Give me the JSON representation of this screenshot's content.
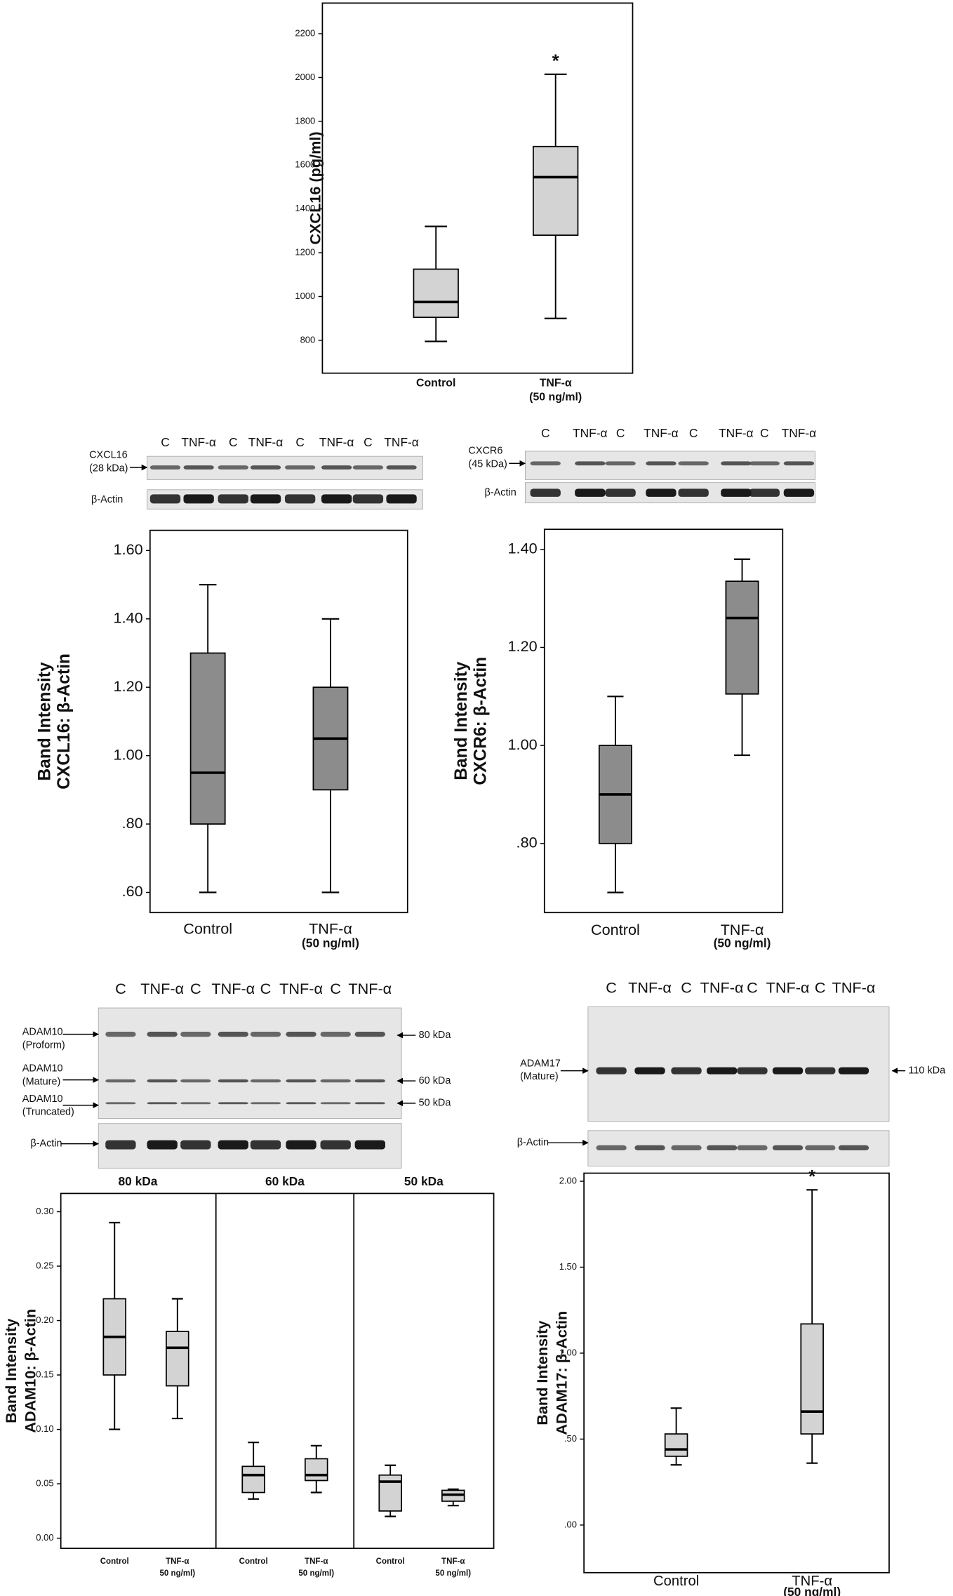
{
  "chart_data": [
    {
      "type": "box",
      "ylabel": [
        "CXCL16 (pg/ml)"
      ],
      "color": "#d3d3d3",
      "categories": [
        "Control",
        "TNF-α"
      ],
      "category_sublabels": [
        null,
        "(50 ng/ml)"
      ],
      "annotations": [
        null,
        "*"
      ],
      "ylim": [
        650,
        2340
      ],
      "yticks": [
        800,
        1000,
        1200,
        1400,
        1600,
        1800,
        2000,
        2200
      ],
      "boxes": [
        {
          "min": 795,
          "q1": 905,
          "median": 975,
          "q3": 1125,
          "max": 1320
        },
        {
          "min": 900,
          "q1": 1280,
          "median": 1545,
          "q3": 1685,
          "max": 2015
        }
      ]
    },
    {
      "type": "box",
      "ylabel": [
        "Band Intensity",
        "CXCL16: β-Actin"
      ],
      "color": "#8c8c8c",
      "categories": [
        "Control",
        "TNF-α"
      ],
      "category_sublabels": [
        null,
        "(50 ng/ml)"
      ],
      "ylim": [
        0.541,
        1.659
      ],
      "yticks": [
        {
          "value": 0.6,
          "label": ".60"
        },
        {
          "value": 0.8,
          "label": ".80"
        },
        {
          "value": 1.0,
          "label": "1.00"
        },
        {
          "value": 1.2,
          "label": "1.20"
        },
        {
          "value": 1.4,
          "label": "1.40"
        },
        {
          "value": 1.6,
          "label": "1.60"
        }
      ],
      "boxes": [
        {
          "min": 0.6,
          "q1": 0.8,
          "median": 0.95,
          "q3": 1.3,
          "max": 1.5
        },
        {
          "min": 0.6,
          "q1": 0.9,
          "median": 1.05,
          "q3": 1.2,
          "max": 1.4
        }
      ]
    },
    {
      "type": "box",
      "ylabel": [
        "Band Intensity",
        "CXCR6: β-Actin"
      ],
      "color": "#8c8c8c",
      "categories": [
        "Control",
        "TNF-α"
      ],
      "category_sublabels": [
        null,
        "(50 ng/ml)"
      ],
      "ylim": [
        0.659,
        1.441
      ],
      "yticks": [
        {
          "value": 0.8,
          "label": ".80"
        },
        {
          "value": 1.0,
          "label": "1.00"
        },
        {
          "value": 1.2,
          "label": "1.20"
        },
        {
          "value": 1.4,
          "label": "1.40"
        }
      ],
      "boxes": [
        {
          "min": 0.7,
          "q1": 0.8,
          "median": 0.9,
          "q3": 1.0,
          "max": 1.1
        },
        {
          "min": 0.98,
          "q1": 1.105,
          "median": 1.26,
          "q3": 1.335,
          "max": 1.38
        }
      ]
    },
    {
      "type": "panel-box",
      "ylabel": [
        "Band Intensity",
        "ADAM10: β-Actin"
      ],
      "color": "#d3d3d3",
      "categories": [
        "Control",
        "TNF-α"
      ],
      "category_sublabels": [
        null,
        "50 ng/ml)"
      ],
      "ylim": [
        -0.0093,
        0.3168
      ],
      "yticks": [
        {
          "value": 0,
          "label": "0.00"
        },
        {
          "value": 0.05,
          "label": "0.05"
        },
        {
          "value": 0.1,
          "label": "0.10"
        },
        {
          "value": 0.15,
          "label": "0.15"
        },
        {
          "value": 0.2,
          "label": "0.20"
        },
        {
          "value": 0.25,
          "label": "0.25"
        },
        {
          "value": 0.3,
          "label": "0.30"
        }
      ],
      "panels": [
        {
          "title": "80 kDa",
          "boxes": [
            {
              "min": 0.1,
              "q1": 0.15,
              "median": 0.185,
              "q3": 0.22,
              "max": 0.29
            },
            {
              "min": 0.11,
              "q1": 0.14,
              "median": 0.175,
              "q3": 0.19,
              "max": 0.22
            }
          ]
        },
        {
          "title": "60 kDa",
          "boxes": [
            {
              "min": 0.036,
              "q1": 0.042,
              "median": 0.058,
              "q3": 0.066,
              "max": 0.088
            },
            {
              "min": 0.042,
              "q1": 0.053,
              "median": 0.058,
              "q3": 0.073,
              "max": 0.085
            }
          ]
        },
        {
          "title": "50 kDa",
          "boxes": [
            {
              "min": 0.02,
              "q1": 0.025,
              "median": 0.052,
              "q3": 0.058,
              "max": 0.067
            },
            {
              "min": 0.03,
              "q1": 0.034,
              "median": 0.04,
              "q3": 0.044,
              "max": 0.045
            }
          ]
        }
      ]
    },
    {
      "type": "box",
      "ylabel": [
        "Band Intensity",
        "ADAM17: β-Actin"
      ],
      "color": "#d3d3d3",
      "categories": [
        "Control",
        "TNF-α"
      ],
      "category_sublabels": [
        null,
        "(50 ng/ml)"
      ],
      "annotations": [
        null,
        "*"
      ],
      "ylim": [
        -0.277,
        2.047
      ],
      "yticks": [
        {
          "value": 0,
          "label": ".00"
        },
        {
          "value": 0.5,
          "label": ".50"
        },
        {
          "value": 1.0,
          "label": "1.00"
        },
        {
          "value": 1.5,
          "label": "1.50"
        },
        {
          "value": 2.0,
          "label": "2.00"
        }
      ],
      "boxes": [
        {
          "min": 0.35,
          "q1": 0.4,
          "median": 0.44,
          "q3": 0.53,
          "max": 0.68
        },
        {
          "min": 0.36,
          "q1": 0.53,
          "median": 0.66,
          "q3": 1.17,
          "max": 1.95
        }
      ]
    }
  ],
  "blots": [
    {
      "lanes": [
        "C",
        "TNF-α",
        "C",
        "TNF-α",
        "C",
        "TNF-α",
        "C",
        "TNF-α"
      ],
      "labels": [
        [
          "CXCL16",
          "(28 kDa)"
        ],
        [
          "β-Actin"
        ]
      ]
    },
    {
      "lanes": [
        "C",
        "TNF-α",
        "C",
        "TNF-α",
        "C",
        "TNF-α",
        "C",
        "TNF-α"
      ],
      "labels": [
        [
          "CXCR6",
          "(45 kDa)"
        ],
        [
          "β-Actin"
        ]
      ]
    },
    {
      "lanes": [
        "C",
        "TNF-α",
        "C",
        "TNF-α",
        "C",
        "TNF-α",
        "C",
        "TNF-α"
      ],
      "labels": [
        [
          "ADAM10",
          "(Proform)"
        ],
        [
          "ADAM10",
          "(Mature)"
        ],
        [
          "ADAM10",
          "(Truncated)"
        ],
        [
          "β-Actin"
        ]
      ],
      "markers": [
        "80 kDa",
        "60 kDa",
        "50 kDa"
      ]
    },
    {
      "lanes": [
        "C",
        "TNF-α",
        "C",
        "TNF-α",
        "C",
        "TNF-α",
        "C",
        "TNF-α"
      ],
      "labels": [
        [
          "ADAM17",
          "(Mature)"
        ],
        [
          "β-Actin"
        ]
      ],
      "markers": [
        "110 kDa"
      ]
    }
  ]
}
